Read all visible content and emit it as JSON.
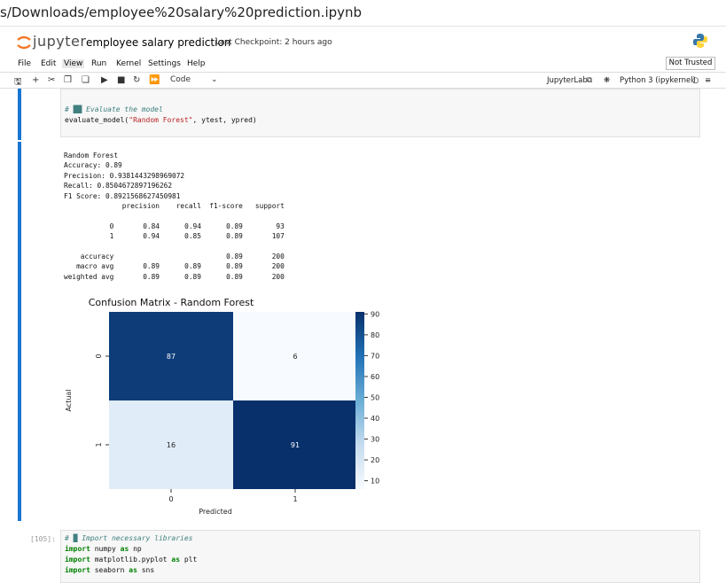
{
  "browser": {
    "url_fragment": "s/Downloads/employee%20salary%20prediction.ipynb"
  },
  "header": {
    "logo_text": "jupyter",
    "notebook_title": "employee salary prediction",
    "checkpoint": "Last Checkpoint: 2 hours ago"
  },
  "menu": {
    "items": [
      "File",
      "Edit",
      "View",
      "Run",
      "Kernel",
      "Settings",
      "Help"
    ],
    "trust_label": "Not Trusted"
  },
  "toolbar": {
    "cell_type": "Code",
    "jupyterlab_label": "JupyterLab",
    "kernel_label": "Python 3 (ipykernel)"
  },
  "cell1": {
    "line_comment": "# ██ Evaluate the model",
    "line_call_prefix": "evaluate_model(",
    "line_call_str": "\"Random Forest\"",
    "line_call_suffix": ", ytest, ypred)"
  },
  "output": {
    "text": "Random Forest\nAccuracy: 0.89\nPrecision: 0.9381443298969072\nRecall: 0.8504672897196262\nF1 Score: 0.8921568627450981\n              precision    recall  f1-score   support\n\n           0       0.84      0.94      0.89        93\n           1       0.94      0.85      0.89       107\n\n    accuracy                           0.89       200\n   macro avg       0.89      0.89      0.89       200\nweighted avg       0.89      0.89      0.89       200"
  },
  "chart_data": {
    "type": "heatmap",
    "title": "Confusion Matrix - Random Forest",
    "xlabel": "Predicted",
    "ylabel": "Actual",
    "x_categories": [
      "0",
      "1"
    ],
    "y_categories": [
      "0",
      "1"
    ],
    "values": [
      [
        87,
        6
      ],
      [
        16,
        91
      ]
    ],
    "colormap": "Blues",
    "colorbar_range": [
      6,
      91
    ],
    "colorbar_ticks": [
      10,
      20,
      30,
      40,
      50,
      60,
      70,
      80,
      90
    ]
  },
  "cell3": {
    "prompt": "[105]:",
    "line1": "# █ Import necessary libraries",
    "line2_kw": "import",
    "line2_rest": " numpy ",
    "line2_as": "as",
    "line2_alias": " np",
    "line3_kw": "import",
    "line3_rest": " matplotlib.pyplot ",
    "line3_as": "as",
    "line3_alias": " plt",
    "line4_kw": "import",
    "line4_rest": " seaborn ",
    "line4_as": "as",
    "line4_alias": " sns"
  }
}
